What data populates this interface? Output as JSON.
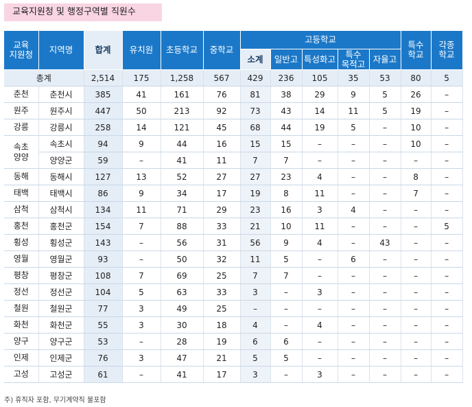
{
  "title": "교육지원청 및 행정구역별 직원수",
  "header": {
    "office": [
      "교육",
      "지원청"
    ],
    "region": "지역명",
    "total": "합계",
    "kindergarten": "유치원",
    "elementary": "초등학교",
    "middle": "중학교",
    "high_school_group": "고등학교",
    "high_subtotal": "소계",
    "general_high": "일반고",
    "specialized_high": "특성화고",
    "special_purpose_high": [
      "특수",
      "목적고"
    ],
    "autonomous_high": "자율고",
    "special_school": [
      "특수",
      "학교"
    ],
    "misc_school": [
      "각종",
      "학교"
    ]
  },
  "total_row": {
    "label": "총계",
    "values": [
      "2,514",
      "175",
      "1,258",
      "567",
      "429",
      "236",
      "105",
      "35",
      "53",
      "80",
      "5"
    ]
  },
  "rows": [
    {
      "office": "춘천",
      "region": "춘천시",
      "values": [
        "385",
        "41",
        "161",
        "76",
        "81",
        "38",
        "29",
        "9",
        "5",
        "26",
        "–"
      ]
    },
    {
      "office": "원주",
      "region": "원주시",
      "values": [
        "447",
        "50",
        "213",
        "92",
        "73",
        "43",
        "14",
        "11",
        "5",
        "19",
        "–"
      ]
    },
    {
      "office": "강릉",
      "region": "강릉시",
      "values": [
        "258",
        "14",
        "121",
        "45",
        "68",
        "44",
        "19",
        "5",
        "–",
        "10",
        "–"
      ]
    },
    {
      "office": "속초\n양양",
      "region": "속초시",
      "values": [
        "94",
        "9",
        "44",
        "16",
        "15",
        "15",
        "–",
        "–",
        "–",
        "10",
        "–"
      ]
    },
    {
      "office": "",
      "region": "양양군",
      "values": [
        "59",
        "–",
        "41",
        "11",
        "7",
        "7",
        "–",
        "–",
        "–",
        "–",
        "–"
      ]
    },
    {
      "office": "동해",
      "region": "동해시",
      "values": [
        "127",
        "13",
        "52",
        "27",
        "27",
        "23",
        "4",
        "–",
        "–",
        "8",
        "–"
      ]
    },
    {
      "office": "태백",
      "region": "태백시",
      "values": [
        "86",
        "9",
        "34",
        "17",
        "19",
        "8",
        "11",
        "–",
        "–",
        "7",
        "–"
      ]
    },
    {
      "office": "삼척",
      "region": "삼척시",
      "values": [
        "134",
        "11",
        "71",
        "29",
        "23",
        "16",
        "3",
        "4",
        "–",
        "–",
        "–"
      ]
    },
    {
      "office": "홍천",
      "region": "홍천군",
      "values": [
        "154",
        "7",
        "88",
        "33",
        "21",
        "10",
        "11",
        "–",
        "–",
        "–",
        "5"
      ]
    },
    {
      "office": "횡성",
      "region": "횡성군",
      "values": [
        "143",
        "–",
        "56",
        "31",
        "56",
        "9",
        "4",
        "–",
        "43",
        "–",
        "–"
      ]
    },
    {
      "office": "영월",
      "region": "영월군",
      "values": [
        "93",
        "–",
        "50",
        "32",
        "11",
        "5",
        "–",
        "6",
        "–",
        "–",
        "–"
      ]
    },
    {
      "office": "평창",
      "region": "평창군",
      "values": [
        "108",
        "7",
        "69",
        "25",
        "7",
        "7",
        "–",
        "–",
        "–",
        "–",
        "–"
      ]
    },
    {
      "office": "정선",
      "region": "정선군",
      "values": [
        "104",
        "5",
        "63",
        "33",
        "3",
        "–",
        "3",
        "–",
        "–",
        "–",
        "–"
      ]
    },
    {
      "office": "철원",
      "region": "철원군",
      "values": [
        "77",
        "3",
        "49",
        "25",
        "–",
        "–",
        "–",
        "–",
        "–",
        "–",
        "–"
      ]
    },
    {
      "office": "화천",
      "region": "화천군",
      "values": [
        "55",
        "3",
        "30",
        "18",
        "4",
        "–",
        "4",
        "–",
        "–",
        "–",
        "–"
      ]
    },
    {
      "office": "양구",
      "region": "양구군",
      "values": [
        "53",
        "–",
        "28",
        "19",
        "6",
        "6",
        "–",
        "–",
        "–",
        "–",
        "–"
      ]
    },
    {
      "office": "인제",
      "region": "인제군",
      "values": [
        "76",
        "3",
        "47",
        "21",
        "5",
        "5",
        "–",
        "–",
        "–",
        "–",
        "–"
      ]
    },
    {
      "office": "고성",
      "region": "고성군",
      "values": [
        "61",
        "–",
        "41",
        "17",
        "3",
        "–",
        "3",
        "–",
        "–",
        "–",
        "–"
      ]
    }
  ],
  "note": "주) 휴직자 포함, 무기계약직 불포함"
}
